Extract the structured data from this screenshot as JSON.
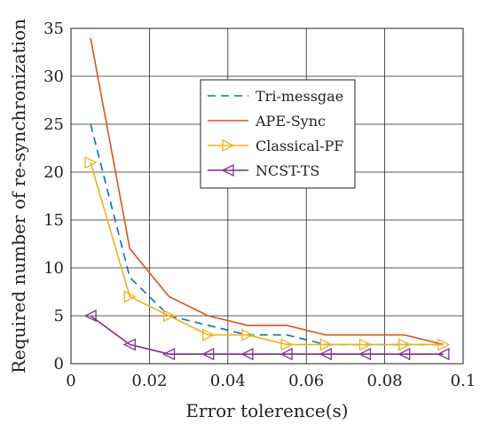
{
  "chart_data": {
    "type": "line",
    "title": "",
    "xlabel": "Error tolerence(s)",
    "ylabel": "Required number of re-synchronization",
    "xlim": [
      0,
      0.1
    ],
    "ylim": [
      0,
      35
    ],
    "xticks": [
      0,
      0.02,
      0.04,
      0.06,
      0.08,
      0.1
    ],
    "xtick_labels": [
      "0",
      "0.02",
      "0.04",
      "0.06",
      "0.08",
      "0.1"
    ],
    "yticks": [
      0,
      5,
      10,
      15,
      20,
      25,
      30,
      35
    ],
    "ytick_labels": [
      "0",
      "5",
      "10",
      "15",
      "20",
      "25",
      "30",
      "35"
    ],
    "grid": true,
    "legend_position": "upper-center",
    "series": [
      {
        "name": "Tri-messgae",
        "color": "#0072BD",
        "line_style": "dashed",
        "marker": "none",
        "x": [
          0.005,
          0.015,
          0.025,
          0.035,
          0.045,
          0.055,
          0.065,
          0.075,
          0.085,
          0.095
        ],
        "y": [
          25,
          9,
          5,
          4,
          3,
          3,
          2,
          2,
          2,
          2
        ]
      },
      {
        "name": "APE-Sync",
        "color": "#D95319",
        "line_style": "solid",
        "marker": "none",
        "x": [
          0.005,
          0.015,
          0.025,
          0.035,
          0.045,
          0.055,
          0.065,
          0.075,
          0.085,
          0.095
        ],
        "y": [
          34,
          12,
          7,
          5,
          4,
          4,
          3,
          3,
          3,
          2
        ]
      },
      {
        "name": "Classical-PF",
        "color": "#EDB120",
        "line_style": "solid",
        "marker": "triangle-right",
        "x": [
          0.005,
          0.015,
          0.025,
          0.035,
          0.045,
          0.055,
          0.065,
          0.075,
          0.085,
          0.095
        ],
        "y": [
          21,
          7,
          5,
          3,
          3,
          2,
          2,
          2,
          2,
          2
        ]
      },
      {
        "name": "NCST-TS",
        "color": "#7E2F8E",
        "line_style": "solid",
        "marker": "triangle-left",
        "x": [
          0.005,
          0.015,
          0.025,
          0.035,
          0.045,
          0.055,
          0.065,
          0.075,
          0.085,
          0.095
        ],
        "y": [
          5,
          2,
          1,
          1,
          1,
          1,
          1,
          1,
          1,
          1
        ]
      }
    ]
  }
}
